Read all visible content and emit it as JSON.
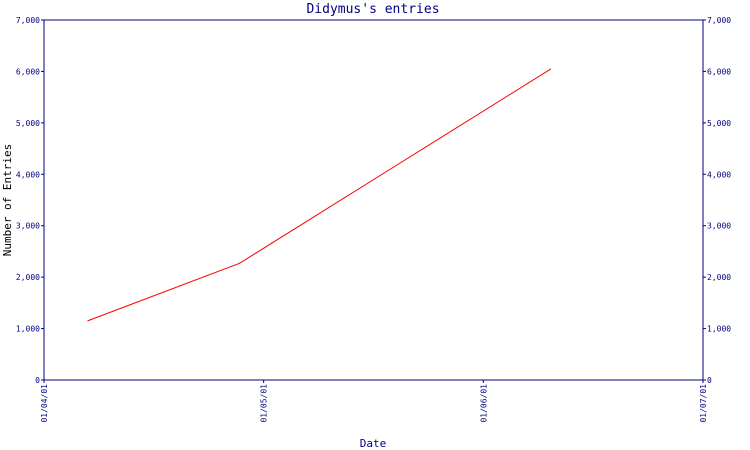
{
  "chart_data": {
    "type": "line",
    "title": "Didymus's entries",
    "xlabel": "Date",
    "ylabel": "Number of Entries",
    "x_ticks": [
      "01/04/01",
      "01/05/01",
      "01/06/01",
      "01/07/01"
    ],
    "y_ticks": [
      "0",
      "1,000",
      "2,000",
      "3,000",
      "4,000",
      "5,000",
      "6,000",
      "7,000"
    ],
    "ylim": [
      0,
      7000
    ],
    "xlim": [
      "2001-04-01",
      "2001-07-01"
    ],
    "grid": false,
    "series": [
      {
        "color": "#ff0000",
        "x": [
          "2001-04-07",
          "2001-04-28",
          "2001-06-10"
        ],
        "y": [
          1150,
          2270,
          6050
        ]
      }
    ],
    "axis_color": "#000080"
  }
}
